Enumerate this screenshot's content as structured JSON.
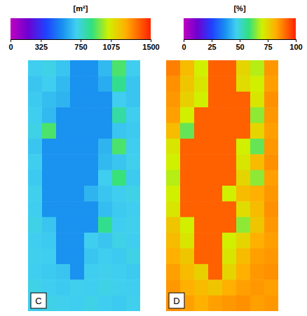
{
  "chart_data": [
    {
      "type": "heatmap",
      "panel": "C",
      "colorbar_label": "[m²]",
      "colorbar_range": [
        0,
        1500
      ],
      "colorbar_ticks": [
        0,
        325,
        750,
        1075,
        1500
      ],
      "cells": [
        [
          700,
          720,
          680,
          560,
          560,
          650,
          900,
          700
        ],
        [
          680,
          700,
          650,
          560,
          560,
          620,
          850,
          680
        ],
        [
          690,
          660,
          640,
          560,
          560,
          560,
          700,
          680
        ],
        [
          700,
          650,
          560,
          560,
          560,
          560,
          820,
          700
        ],
        [
          720,
          900,
          560,
          560,
          560,
          560,
          680,
          690
        ],
        [
          680,
          560,
          560,
          560,
          560,
          640,
          900,
          700
        ],
        [
          700,
          560,
          560,
          560,
          560,
          650,
          680,
          710
        ],
        [
          690,
          560,
          560,
          560,
          560,
          700,
          880,
          690
        ],
        [
          710,
          560,
          560,
          560,
          640,
          680,
          700,
          720
        ],
        [
          700,
          560,
          560,
          560,
          560,
          660,
          690,
          700
        ],
        [
          720,
          680,
          560,
          560,
          560,
          850,
          700,
          710
        ],
        [
          700,
          690,
          560,
          560,
          700,
          680,
          720,
          700
        ],
        [
          710,
          700,
          560,
          560,
          680,
          700,
          690,
          720
        ],
        [
          700,
          690,
          680,
          560,
          700,
          710,
          700,
          690
        ],
        [
          720,
          700,
          690,
          710,
          700,
          720,
          710,
          700
        ],
        [
          700,
          720,
          710,
          700,
          720,
          700,
          690,
          710
        ]
      ]
    },
    {
      "type": "heatmap",
      "panel": "D",
      "colorbar_label": "[%]",
      "colorbar_range": [
        0,
        100
      ],
      "colorbar_ticks": [
        0,
        25,
        50,
        75,
        100
      ],
      "cells": [
        [
          88,
          80,
          70,
          92,
          92,
          75,
          68,
          85
        ],
        [
          86,
          78,
          72,
          92,
          92,
          74,
          70,
          84
        ],
        [
          85,
          76,
          70,
          92,
          92,
          92,
          72,
          86
        ],
        [
          84,
          70,
          92,
          92,
          92,
          92,
          65,
          85
        ],
        [
          80,
          62,
          92,
          92,
          92,
          92,
          75,
          84
        ],
        [
          72,
          92,
          92,
          92,
          92,
          70,
          62,
          85
        ],
        [
          70,
          92,
          92,
          92,
          92,
          72,
          80,
          86
        ],
        [
          68,
          92,
          92,
          92,
          92,
          75,
          65,
          84
        ],
        [
          70,
          92,
          92,
          92,
          70,
          80,
          82,
          85
        ],
        [
          72,
          92,
          92,
          92,
          92,
          74,
          80,
          86
        ],
        [
          78,
          70,
          92,
          92,
          92,
          65,
          78,
          85
        ],
        [
          80,
          72,
          92,
          92,
          70,
          75,
          82,
          84
        ],
        [
          82,
          78,
          92,
          92,
          72,
          80,
          84,
          85
        ],
        [
          84,
          80,
          76,
          92,
          75,
          82,
          85,
          86
        ],
        [
          85,
          82,
          80,
          78,
          82,
          84,
          85,
          84
        ],
        [
          86,
          84,
          82,
          84,
          85,
          86,
          84,
          85
        ]
      ]
    }
  ]
}
